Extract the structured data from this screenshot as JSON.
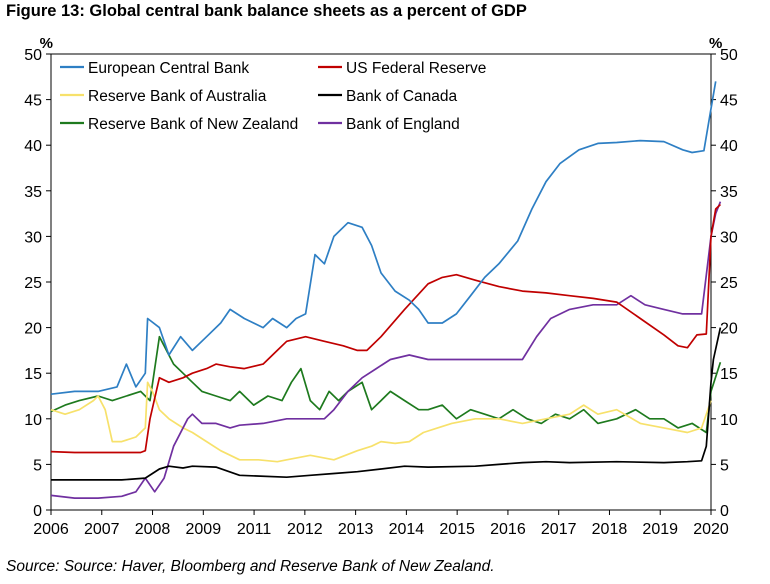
{
  "figure": {
    "title": "Figure 13: Global central bank balance sheets as a percent of GDP",
    "source": "Source: Source: Haver, Bloomberg and Reserve Bank of New Zealand."
  },
  "chart_data": {
    "type": "line",
    "title": "Global central bank balance sheets as a percent of GDP",
    "ylabel_left": "%",
    "ylabel_right": "%",
    "xlim": [
      2006,
      2020
    ],
    "ylim": [
      0,
      50
    ],
    "x_ticks": [
      "2006",
      "2007",
      "2008",
      "2009",
      "2011",
      "2012",
      "2013",
      "2014",
      "2015",
      "2016",
      "2017",
      "2018",
      "2019",
      "2020"
    ],
    "y_ticks": [
      0,
      5,
      10,
      15,
      20,
      25,
      30,
      35,
      40,
      45,
      50
    ],
    "legend_position": "top-left",
    "series": [
      {
        "name": "European Central Bank",
        "color": "#2e7fc4",
        "x": [
          2006,
          2006.5,
          2007,
          2007.4,
          2007.6,
          2007.8,
          2008,
          2008.05,
          2008.3,
          2008.5,
          2008.75,
          2009,
          2009.3,
          2009.6,
          2009.8,
          2010.1,
          2010.5,
          2010.7,
          2011.0,
          2011.2,
          2011.4,
          2011.6,
          2011.8,
          2012.0,
          2012.3,
          2012.6,
          2012.8,
          2013.0,
          2013.3,
          2013.6,
          2013.8,
          2014.0,
          2014.3,
          2014.6,
          2014.9,
          2015.2,
          2015.5,
          2015.9,
          2016.2,
          2016.5,
          2016.8,
          2017.2,
          2017.6,
          2018.0,
          2018.5,
          2019.0,
          2019.4,
          2019.6,
          2019.85,
          2020.0,
          2020.1
        ],
        "values": [
          12.7,
          13,
          13,
          13.5,
          16,
          13.5,
          15,
          21,
          20,
          17,
          19,
          17.5,
          19,
          20.5,
          22,
          21,
          20,
          21,
          20,
          21,
          21.5,
          28,
          27,
          30,
          31.5,
          31,
          29,
          26,
          24,
          23,
          22,
          20.5,
          20.5,
          21.5,
          23.5,
          25.5,
          27,
          29.5,
          33,
          36,
          38,
          39.5,
          40.2,
          40.3,
          40.5,
          40.4,
          39.5,
          39.2,
          39.4,
          44,
          47
        ]
      },
      {
        "name": "US Federal Reserve",
        "color": "#c00000",
        "x": [
          2006,
          2006.5,
          2007,
          2007.6,
          2007.9,
          2008.0,
          2008.1,
          2008.3,
          2008.5,
          2008.8,
          2009.0,
          2009.3,
          2009.5,
          2009.8,
          2010.1,
          2010.5,
          2010.8,
          2011.0,
          2011.4,
          2011.8,
          2012.2,
          2012.5,
          2012.7,
          2013.0,
          2013.5,
          2014.0,
          2014.3,
          2014.6,
          2015.0,
          2015.5,
          2016.0,
          2016.5,
          2017.0,
          2017.5,
          2018.0,
          2018.5,
          2019.0,
          2019.3,
          2019.5,
          2019.7,
          2019.9,
          2020.0,
          2020.1,
          2020.2
        ],
        "values": [
          6.4,
          6.3,
          6.3,
          6.3,
          6.3,
          6.5,
          10,
          14.5,
          14,
          14.5,
          15,
          15.5,
          16,
          15.7,
          15.5,
          16,
          17.5,
          18.5,
          19,
          18.5,
          18,
          17.5,
          17.5,
          19,
          22,
          24.8,
          25.5,
          25.8,
          25.2,
          24.5,
          24,
          23.8,
          23.5,
          23.2,
          22.8,
          21,
          19.2,
          18,
          17.8,
          19.2,
          19.3,
          30,
          33,
          33.5
        ]
      },
      {
        "name": "Reserve Bank of Australia",
        "color": "#f7e16b",
        "x": [
          2006,
          2006.3,
          2006.6,
          2006.9,
          2007.0,
          2007.15,
          2007.3,
          2007.5,
          2007.8,
          2008.0,
          2008.05,
          2008.15,
          2008.3,
          2008.5,
          2008.8,
          2009.0,
          2009.3,
          2009.6,
          2010.0,
          2010.4,
          2010.8,
          2011.0,
          2011.5,
          2012.0,
          2012.5,
          2012.8,
          2013.0,
          2013.3,
          2013.6,
          2013.9,
          2014.2,
          2014.5,
          2015.0,
          2015.5,
          2016.0,
          2016.5,
          2017.0,
          2017.3,
          2017.6,
          2018.0,
          2018.5,
          2019.0,
          2019.5,
          2019.8,
          2020.0
        ],
        "values": [
          11,
          10.5,
          11,
          12,
          12.5,
          11,
          7.5,
          7.5,
          8,
          9,
          14,
          13,
          11,
          10,
          9,
          8.5,
          7.5,
          6.5,
          5.5,
          5.5,
          5.3,
          5.5,
          6,
          5.5,
          6.5,
          7,
          7.5,
          7.3,
          7.5,
          8.5,
          9,
          9.5,
          10,
          10,
          9.5,
          10,
          10.5,
          11.5,
          10.5,
          11,
          9.5,
          9,
          8.5,
          9,
          12
        ]
      },
      {
        "name": "Bank of Canada",
        "color": "#000000",
        "x": [
          2006,
          2007,
          2007.5,
          2008,
          2008.3,
          2008.5,
          2008.8,
          2009,
          2009.5,
          2010,
          2011,
          2011.5,
          2012,
          2012.5,
          2013,
          2013.5,
          2014,
          2015,
          2015.5,
          2016,
          2016.5,
          2017,
          2018,
          2019,
          2019.5,
          2019.8,
          2019.9,
          2020.0,
          2020.05,
          2020.2
        ],
        "values": [
          3.3,
          3.3,
          3.3,
          3.5,
          4.5,
          4.8,
          4.6,
          4.8,
          4.7,
          3.8,
          3.6,
          3.8,
          4,
          4.2,
          4.5,
          4.8,
          4.7,
          4.8,
          5,
          5.2,
          5.3,
          5.2,
          5.3,
          5.2,
          5.3,
          5.4,
          7,
          14,
          16.5,
          20
        ]
      },
      {
        "name": "Reserve Bank of New Zealand",
        "color": "#1e7a1e",
        "x": [
          2006,
          2006.3,
          2006.6,
          2007.0,
          2007.3,
          2007.6,
          2007.9,
          2008.1,
          2008.3,
          2008.6,
          2008.8,
          2009.0,
          2009.2,
          2009.5,
          2009.8,
          2010.0,
          2010.3,
          2010.6,
          2010.9,
          2011.1,
          2011.3,
          2011.5,
          2011.7,
          2011.9,
          2012.1,
          2012.3,
          2012.6,
          2012.8,
          2013.0,
          2013.2,
          2013.5,
          2013.8,
          2014.0,
          2014.3,
          2014.6,
          2014.9,
          2015.2,
          2015.5,
          2015.8,
          2016.1,
          2016.4,
          2016.7,
          2017.0,
          2017.3,
          2017.6,
          2018.0,
          2018.4,
          2018.7,
          2019.0,
          2019.3,
          2019.6,
          2019.9,
          2020.0,
          2020.2
        ],
        "values": [
          10.8,
          11.5,
          12,
          12.5,
          12,
          12.5,
          13,
          12,
          19,
          16,
          15,
          14,
          13,
          12.5,
          12,
          13,
          11.5,
          12.5,
          12,
          14,
          15.5,
          12,
          11,
          13,
          12,
          13,
          14,
          11,
          12,
          13,
          12,
          11,
          11,
          11.5,
          10,
          11,
          10.5,
          10,
          11,
          10,
          9.5,
          10.5,
          10,
          11,
          9.5,
          10,
          11,
          10,
          10,
          9,
          9.5,
          8.5,
          13,
          16.2
        ]
      },
      {
        "name": "Bank of England",
        "color": "#7030a0",
        "x": [
          2006,
          2006.5,
          2007,
          2007.5,
          2007.8,
          2008.0,
          2008.2,
          2008.4,
          2008.6,
          2008.9,
          2009.0,
          2009.2,
          2009.5,
          2009.8,
          2010.0,
          2010.5,
          2011.0,
          2011.5,
          2011.8,
          2012.0,
          2012.3,
          2012.6,
          2012.9,
          2013.2,
          2013.6,
          2014.0,
          2014.5,
          2015.0,
          2015.5,
          2016.0,
          2016.3,
          2016.6,
          2017.0,
          2017.5,
          2018.0,
          2018.3,
          2018.6,
          2019.0,
          2019.4,
          2019.8,
          2020.0,
          2020.1,
          2020.2
        ],
        "values": [
          1.6,
          1.3,
          1.3,
          1.5,
          2,
          3.5,
          2,
          3.5,
          7,
          10,
          10.5,
          9.5,
          9.5,
          9,
          9.3,
          9.5,
          10,
          10,
          10,
          11,
          13,
          14.5,
          15.5,
          16.5,
          17,
          16.5,
          16.5,
          16.5,
          16.5,
          16.5,
          19,
          21,
          22,
          22.5,
          22.5,
          23.5,
          22.5,
          22,
          21.5,
          21.5,
          30,
          32.5,
          33.8
        ]
      }
    ]
  }
}
